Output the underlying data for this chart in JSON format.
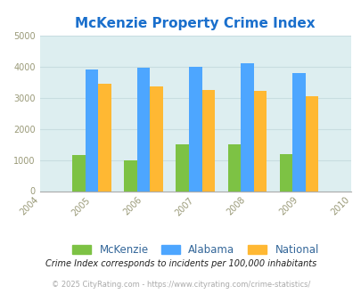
{
  "title": "McKenzie Property Crime Index",
  "all_years": [
    2004,
    2005,
    2006,
    2007,
    2008,
    2009,
    2010
  ],
  "data_years": [
    2005,
    2006,
    2007,
    2008,
    2009
  ],
  "mckenzie": [
    1150,
    1000,
    1500,
    1500,
    1200
  ],
  "alabama": [
    3900,
    3950,
    3975,
    4100,
    3775
  ],
  "national": [
    3450,
    3350,
    3250,
    3225,
    3050
  ],
  "color_mckenzie": "#7dc244",
  "color_alabama": "#4da6ff",
  "color_national": "#ffb833",
  "bg_color": "#ddeef0",
  "ylim": [
    0,
    5000
  ],
  "yticks": [
    0,
    1000,
    2000,
    3000,
    4000,
    5000
  ],
  "tick_color": "#999977",
  "title_color": "#1a6fcc",
  "legend_label_color": "#336699",
  "legend_labels": [
    "McKenzie",
    "Alabama",
    "National"
  ],
  "footnote1": "Crime Index corresponds to incidents per 100,000 inhabitants",
  "footnote2": "© 2025 CityRating.com - https://www.cityrating.com/crime-statistics/",
  "bar_width": 0.25,
  "grid_color": "#c8dde0"
}
